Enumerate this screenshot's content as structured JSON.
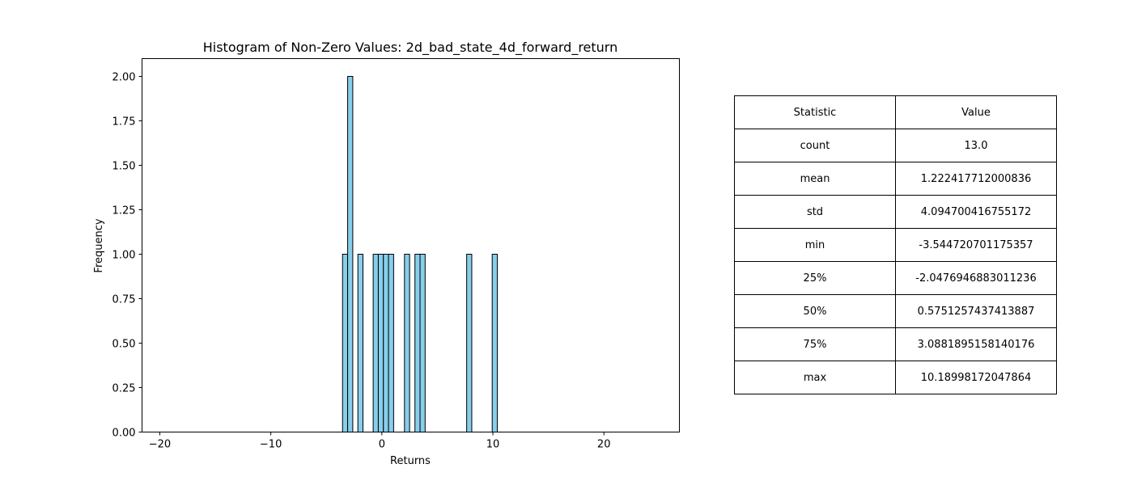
{
  "chart_data": {
    "type": "bar",
    "title": "Histogram of Non-Zero Values: 2d_bad_state_4d_forward_return",
    "xlabel": "Returns",
    "ylabel": "Frequency",
    "xlim": [
      -21.6,
      26.8
    ],
    "ylim": [
      0,
      2.1
    ],
    "xticks": [
      -20,
      -10,
      0,
      10,
      20
    ],
    "xtick_labels": [
      "−20",
      "−10",
      "0",
      "10",
      "20"
    ],
    "yticks": [
      0,
      0.25,
      0.5,
      0.75,
      1.0,
      1.25,
      1.5,
      1.75,
      2.0
    ],
    "ytick_labels": [
      "0.00",
      "0.25",
      "0.50",
      "0.75",
      "1.00",
      "1.25",
      "1.50",
      "1.75",
      "2.00"
    ],
    "bin_width": 0.46,
    "bars": [
      {
        "x0": -3.54,
        "count": 1
      },
      {
        "x0": -3.08,
        "count": 2
      },
      {
        "x0": -2.16,
        "count": 1
      },
      {
        "x0": -0.78,
        "count": 1
      },
      {
        "x0": -0.32,
        "count": 1
      },
      {
        "x0": 0.14,
        "count": 1
      },
      {
        "x0": 0.6,
        "count": 1
      },
      {
        "x0": 2.04,
        "count": 1
      },
      {
        "x0": 2.98,
        "count": 1
      },
      {
        "x0": 3.44,
        "count": 1
      },
      {
        "x0": 7.64,
        "count": 1
      },
      {
        "x0": 9.94,
        "count": 1
      }
    ],
    "bar_color": "#87ceeb",
    "edge_color": "#000000",
    "grid": false
  },
  "stats_table": {
    "headers": [
      "Statistic",
      "Value"
    ],
    "rows": [
      [
        "count",
        "13.0"
      ],
      [
        "mean",
        "1.222417712000836"
      ],
      [
        "std",
        "4.094700416755172"
      ],
      [
        "min",
        "-3.544720701175357"
      ],
      [
        "25%",
        "-2.0476946883011236"
      ],
      [
        "50%",
        "0.5751257437413887"
      ],
      [
        "75%",
        "3.0881895158140176"
      ],
      [
        "max",
        "10.18998172047864"
      ]
    ]
  }
}
